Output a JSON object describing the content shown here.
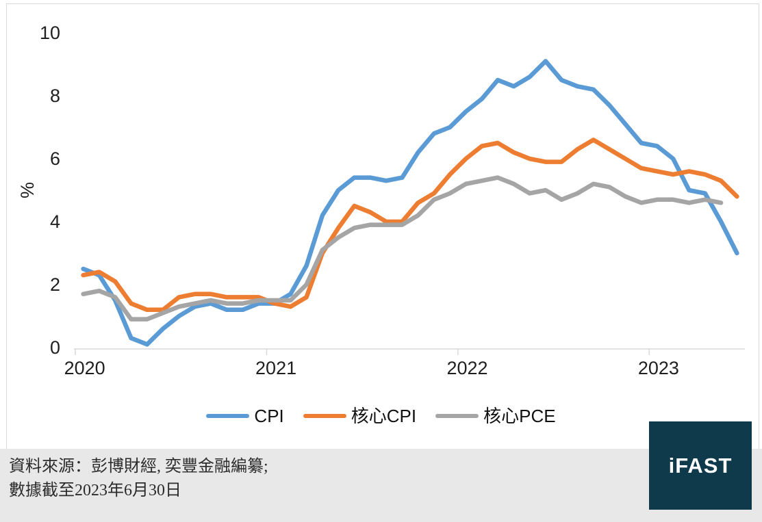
{
  "chart_data": {
    "type": "line",
    "x_period": "monthly",
    "x_range_start": "2020-01",
    "x_range_end": "2023-06",
    "x_tick_labels": [
      "2020",
      "2021",
      "2022",
      "2023"
    ],
    "ylabel": "%",
    "ylim": [
      0,
      10
    ],
    "yticks": [
      0,
      2,
      4,
      6,
      8,
      10
    ],
    "grid": false,
    "legend_position": "bottom",
    "series": [
      {
        "name": "CPI",
        "color": "#5B9BD5",
        "values": [
          2.5,
          2.3,
          1.5,
          0.3,
          0.1,
          0.6,
          1.0,
          1.3,
          1.4,
          1.2,
          1.2,
          1.4,
          1.4,
          1.7,
          2.6,
          4.2,
          5.0,
          5.4,
          5.4,
          5.3,
          5.4,
          6.2,
          6.8,
          7.0,
          7.5,
          7.9,
          8.5,
          8.3,
          8.6,
          9.1,
          8.5,
          8.3,
          8.2,
          7.7,
          7.1,
          6.5,
          6.4,
          6.0,
          5.0,
          4.9,
          4.0,
          3.0
        ]
      },
      {
        "name": "核心CPI",
        "color": "#ED7D31",
        "values": [
          2.3,
          2.4,
          2.1,
          1.4,
          1.2,
          1.2,
          1.6,
          1.7,
          1.7,
          1.6,
          1.6,
          1.6,
          1.4,
          1.3,
          1.6,
          3.0,
          3.8,
          4.5,
          4.3,
          4.0,
          4.0,
          4.6,
          4.9,
          5.5,
          6.0,
          6.4,
          6.5,
          6.2,
          6.0,
          5.9,
          5.9,
          6.3,
          6.6,
          6.3,
          6.0,
          5.7,
          5.6,
          5.5,
          5.6,
          5.5,
          5.3,
          4.8
        ]
      },
      {
        "name": "核心PCE",
        "color": "#A5A5A5",
        "values": [
          1.7,
          1.8,
          1.6,
          0.9,
          0.9,
          1.1,
          1.3,
          1.4,
          1.5,
          1.4,
          1.4,
          1.5,
          1.5,
          1.5,
          2.0,
          3.1,
          3.5,
          3.8,
          3.9,
          3.9,
          3.9,
          4.2,
          4.7,
          4.9,
          5.2,
          5.3,
          5.4,
          5.2,
          4.9,
          5.0,
          4.7,
          4.9,
          5.2,
          5.1,
          4.8,
          4.6,
          4.7,
          4.7,
          4.6,
          4.7,
          4.6
        ]
      }
    ],
    "axis_color": "#d9d9d9",
    "tick_label_color": "#1f1f1f"
  },
  "footer": {
    "source_line1": "資料來源：彭博財經, 奕豐金融編纂;",
    "source_line2": "數據截至2023年6月30日",
    "logo_text": "iFAST",
    "logo_bg": "#0e3a4c"
  }
}
